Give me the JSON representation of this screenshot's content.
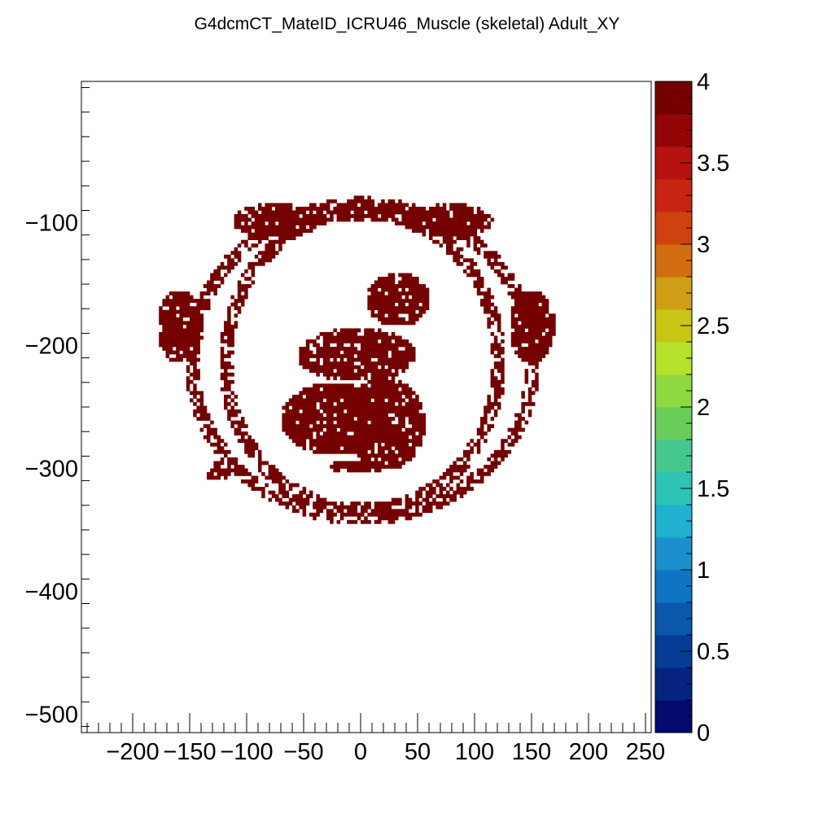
{
  "chart_data": {
    "type": "heatmap",
    "title": "G4dcmCT_MateID_ICRU46_Muscle (skeletal) Adult_XY",
    "xlabel": "",
    "ylabel": "",
    "xlim": [
      -245,
      255
    ],
    "ylim": [
      -515,
      15
    ],
    "zlim": [
      0,
      4
    ],
    "x_ticks": [
      "−200",
      "−150",
      "−100",
      "−50",
      "0",
      "50",
      "100",
      "150",
      "200",
      "250"
    ],
    "y_ticks": [
      "−100",
      "−200",
      "−300",
      "−400",
      "−500"
    ],
    "z_ticks": [
      "0",
      "0.5",
      "1",
      "1.5",
      "2",
      "2.5",
      "3",
      "3.5",
      "4"
    ],
    "value_shown": 4,
    "fill_color": "#740000",
    "regions": [
      {
        "kind": "ring",
        "cx": 0,
        "cy": -215,
        "rx": 120,
        "ry": 122,
        "width": 6
      },
      {
        "kind": "ring",
        "cx": 0,
        "cy": -215,
        "rx": 150,
        "ry": 128,
        "width": 6
      },
      {
        "kind": "blob",
        "cx": -25,
        "cy": -260,
        "rx": 48,
        "ry": 30
      },
      {
        "kind": "blob",
        "cx": 20,
        "cy": -265,
        "rx": 35,
        "ry": 38
      },
      {
        "kind": "blob",
        "cx": -5,
        "cy": -210,
        "rx": 52,
        "ry": 22
      },
      {
        "kind": "blob",
        "cx": 30,
        "cy": -165,
        "rx": 28,
        "ry": 22
      },
      {
        "kind": "blob",
        "cx": -75,
        "cy": -100,
        "rx": 38,
        "ry": 14
      },
      {
        "kind": "blob",
        "cx": 75,
        "cy": -100,
        "rx": 40,
        "ry": 14
      },
      {
        "kind": "blob",
        "cx": 0,
        "cy": -95,
        "rx": 30,
        "ry": 8
      },
      {
        "kind": "blob",
        "cx": -160,
        "cy": -185,
        "rx": 20,
        "ry": 30
      },
      {
        "kind": "blob",
        "cx": 150,
        "cy": -185,
        "rx": 20,
        "ry": 30
      },
      {
        "kind": "blob",
        "cx": -125,
        "cy": -305,
        "rx": 12,
        "ry": 8
      },
      {
        "kind": "blob",
        "cx": -5,
        "cy": -300,
        "rx": 25,
        "ry": 6
      }
    ],
    "colorbar": [
      "#030a6b",
      "#04247f",
      "#063c95",
      "#0a57ab",
      "#0f74c3",
      "#1b90cc",
      "#1fb1cf",
      "#2ec3b7",
      "#46c78f",
      "#69cd5a",
      "#8ed93f",
      "#b6e12a",
      "#c9c515",
      "#cf9e15",
      "#d26c10",
      "#cf4210",
      "#c92411",
      "#b61210",
      "#940606",
      "#740000"
    ]
  }
}
